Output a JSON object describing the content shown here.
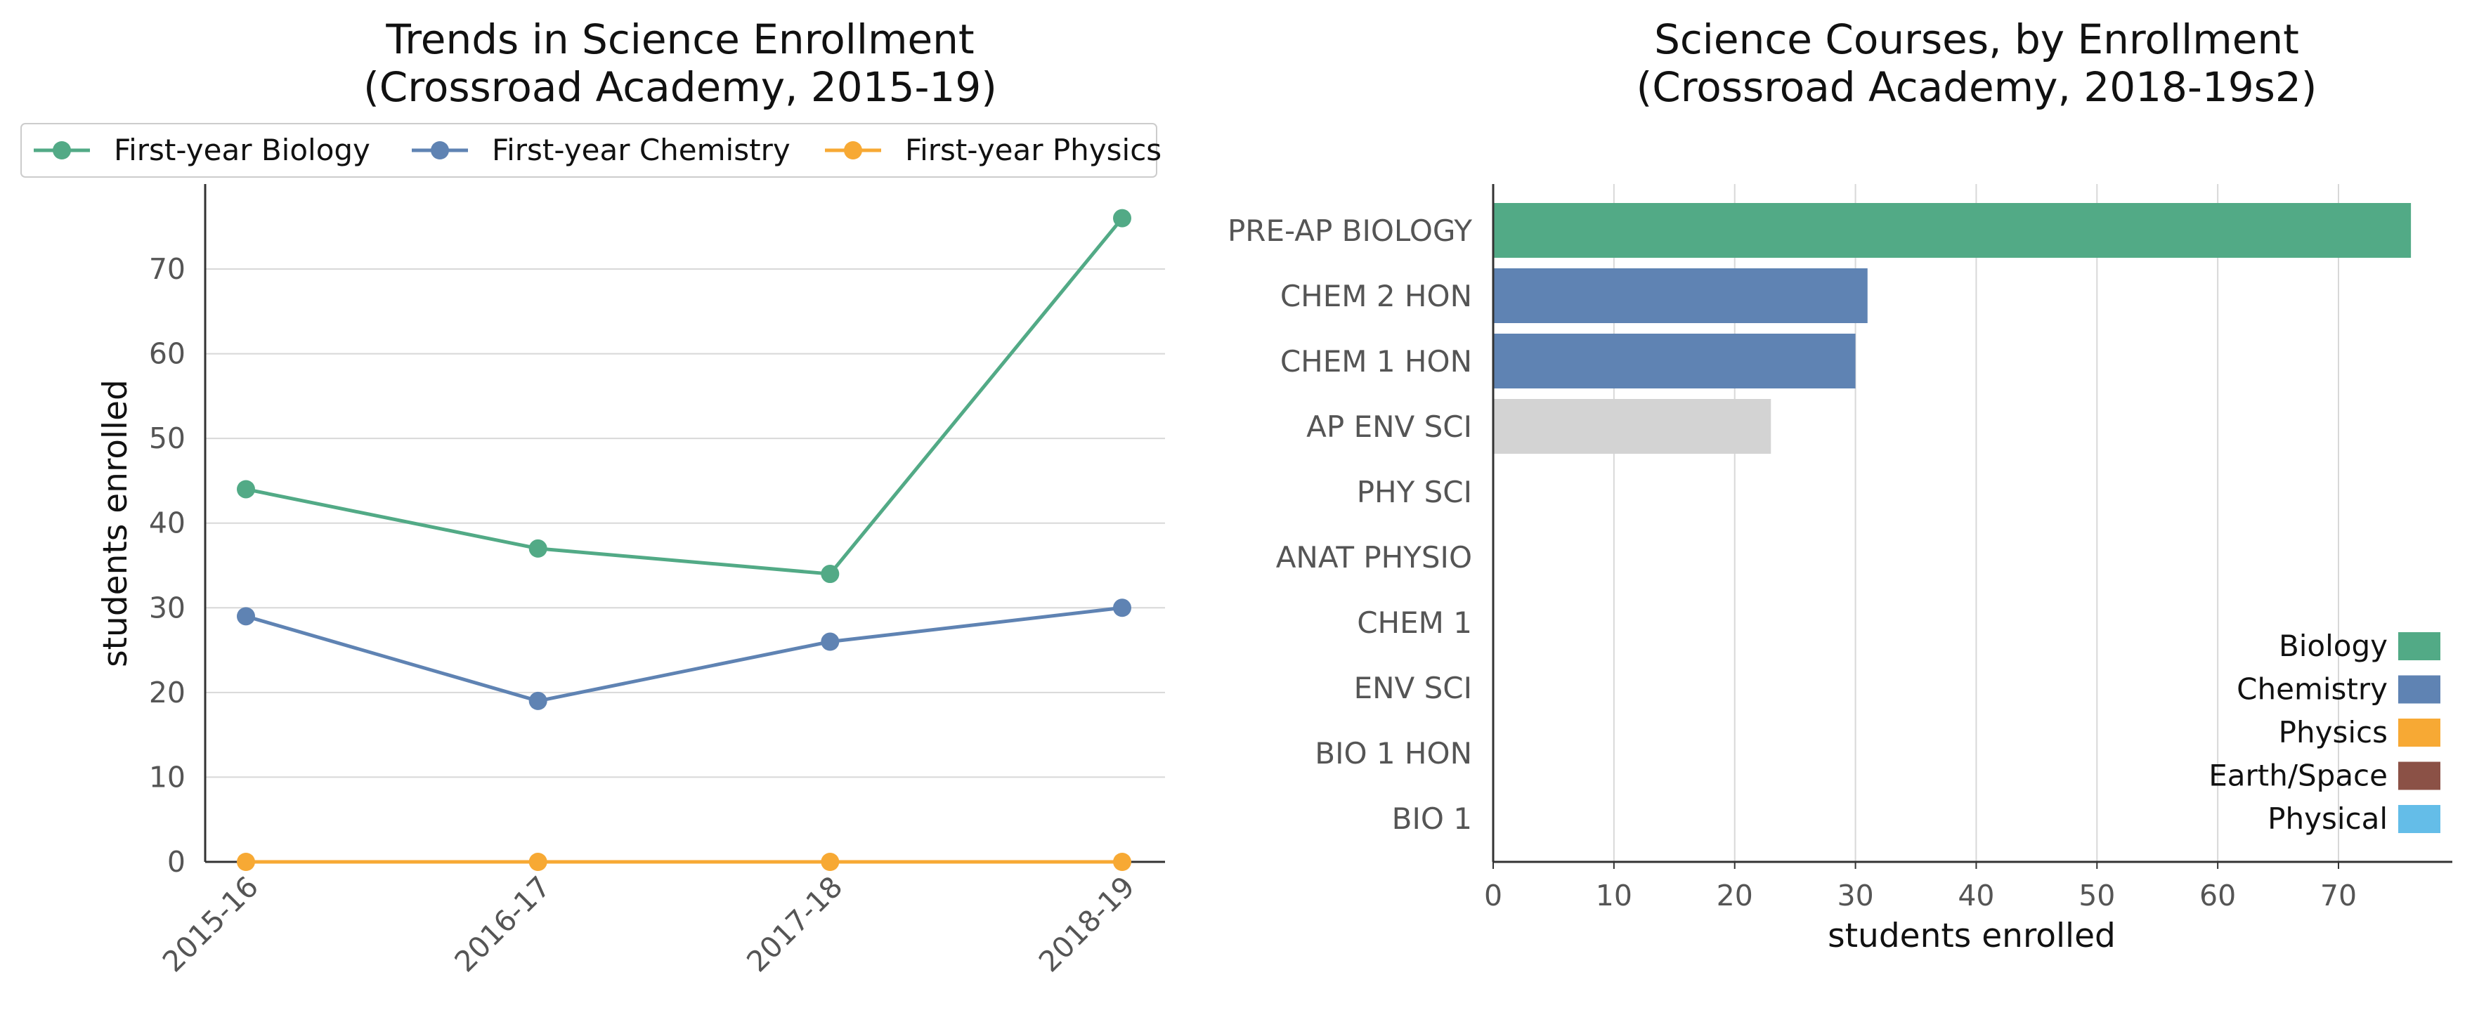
{
  "chart_data": [
    {
      "type": "line",
      "title": "Trends in Science Enrollment\n(Crossroad Academy, 2015-19)",
      "xlabel": "",
      "ylabel": "students enrolled",
      "x": [
        "2015-16",
        "2016-17",
        "2017-18",
        "2018-19"
      ],
      "ylim": [
        0,
        80
      ],
      "yticks": [
        0,
        10,
        20,
        30,
        40,
        50,
        60,
        70
      ],
      "grid": "horizontal",
      "legend": "top",
      "series": [
        {
          "name": "First-year Biology",
          "color": "#52aa86",
          "values": [
            44,
            37,
            34,
            76
          ]
        },
        {
          "name": "First-year Chemistry",
          "color": "#5f83b3",
          "values": [
            29,
            19,
            26,
            30
          ]
        },
        {
          "name": "First-year Physics",
          "color": "#f7a934",
          "values": [
            0,
            0,
            0,
            0
          ]
        }
      ]
    },
    {
      "type": "bar",
      "orientation": "horizontal",
      "title": "Science Courses, by Enrollment\n(Crossroad Academy, 2018-19s2)",
      "xlabel": "students enrolled",
      "ylabel": "",
      "xlim": [
        0,
        80
      ],
      "xticks": [
        0,
        10,
        20,
        30,
        40,
        50,
        60,
        70
      ],
      "grid": "vertical",
      "legend": "lower-right",
      "categories": [
        "PRE-AP BIOLOGY",
        "CHEM 2 HON",
        "CHEM 1 HON",
        "AP ENV SCI",
        "PHY SCI",
        "ANAT PHYSIO",
        "CHEM 1",
        "ENV SCI",
        "BIO 1 HON",
        "BIO 1"
      ],
      "values": [
        76,
        31,
        30,
        23,
        0,
        0,
        0,
        0,
        0,
        0
      ],
      "bar_colors": [
        "#52aa86",
        "#5f83b3",
        "#5f83b3",
        "#d3d3d3",
        "#d3d3d3",
        "#d3d3d3",
        "#d3d3d3",
        "#d3d3d3",
        "#d3d3d3",
        "#d3d3d3"
      ],
      "legend_entries": [
        {
          "name": "Biology",
          "color": "#52aa86"
        },
        {
          "name": "Chemistry",
          "color": "#5f83b3"
        },
        {
          "name": "Physics",
          "color": "#f7a934"
        },
        {
          "name": "Earth/Space",
          "color": "#8b5146"
        },
        {
          "name": "Physical",
          "color": "#64bde8"
        }
      ]
    }
  ]
}
